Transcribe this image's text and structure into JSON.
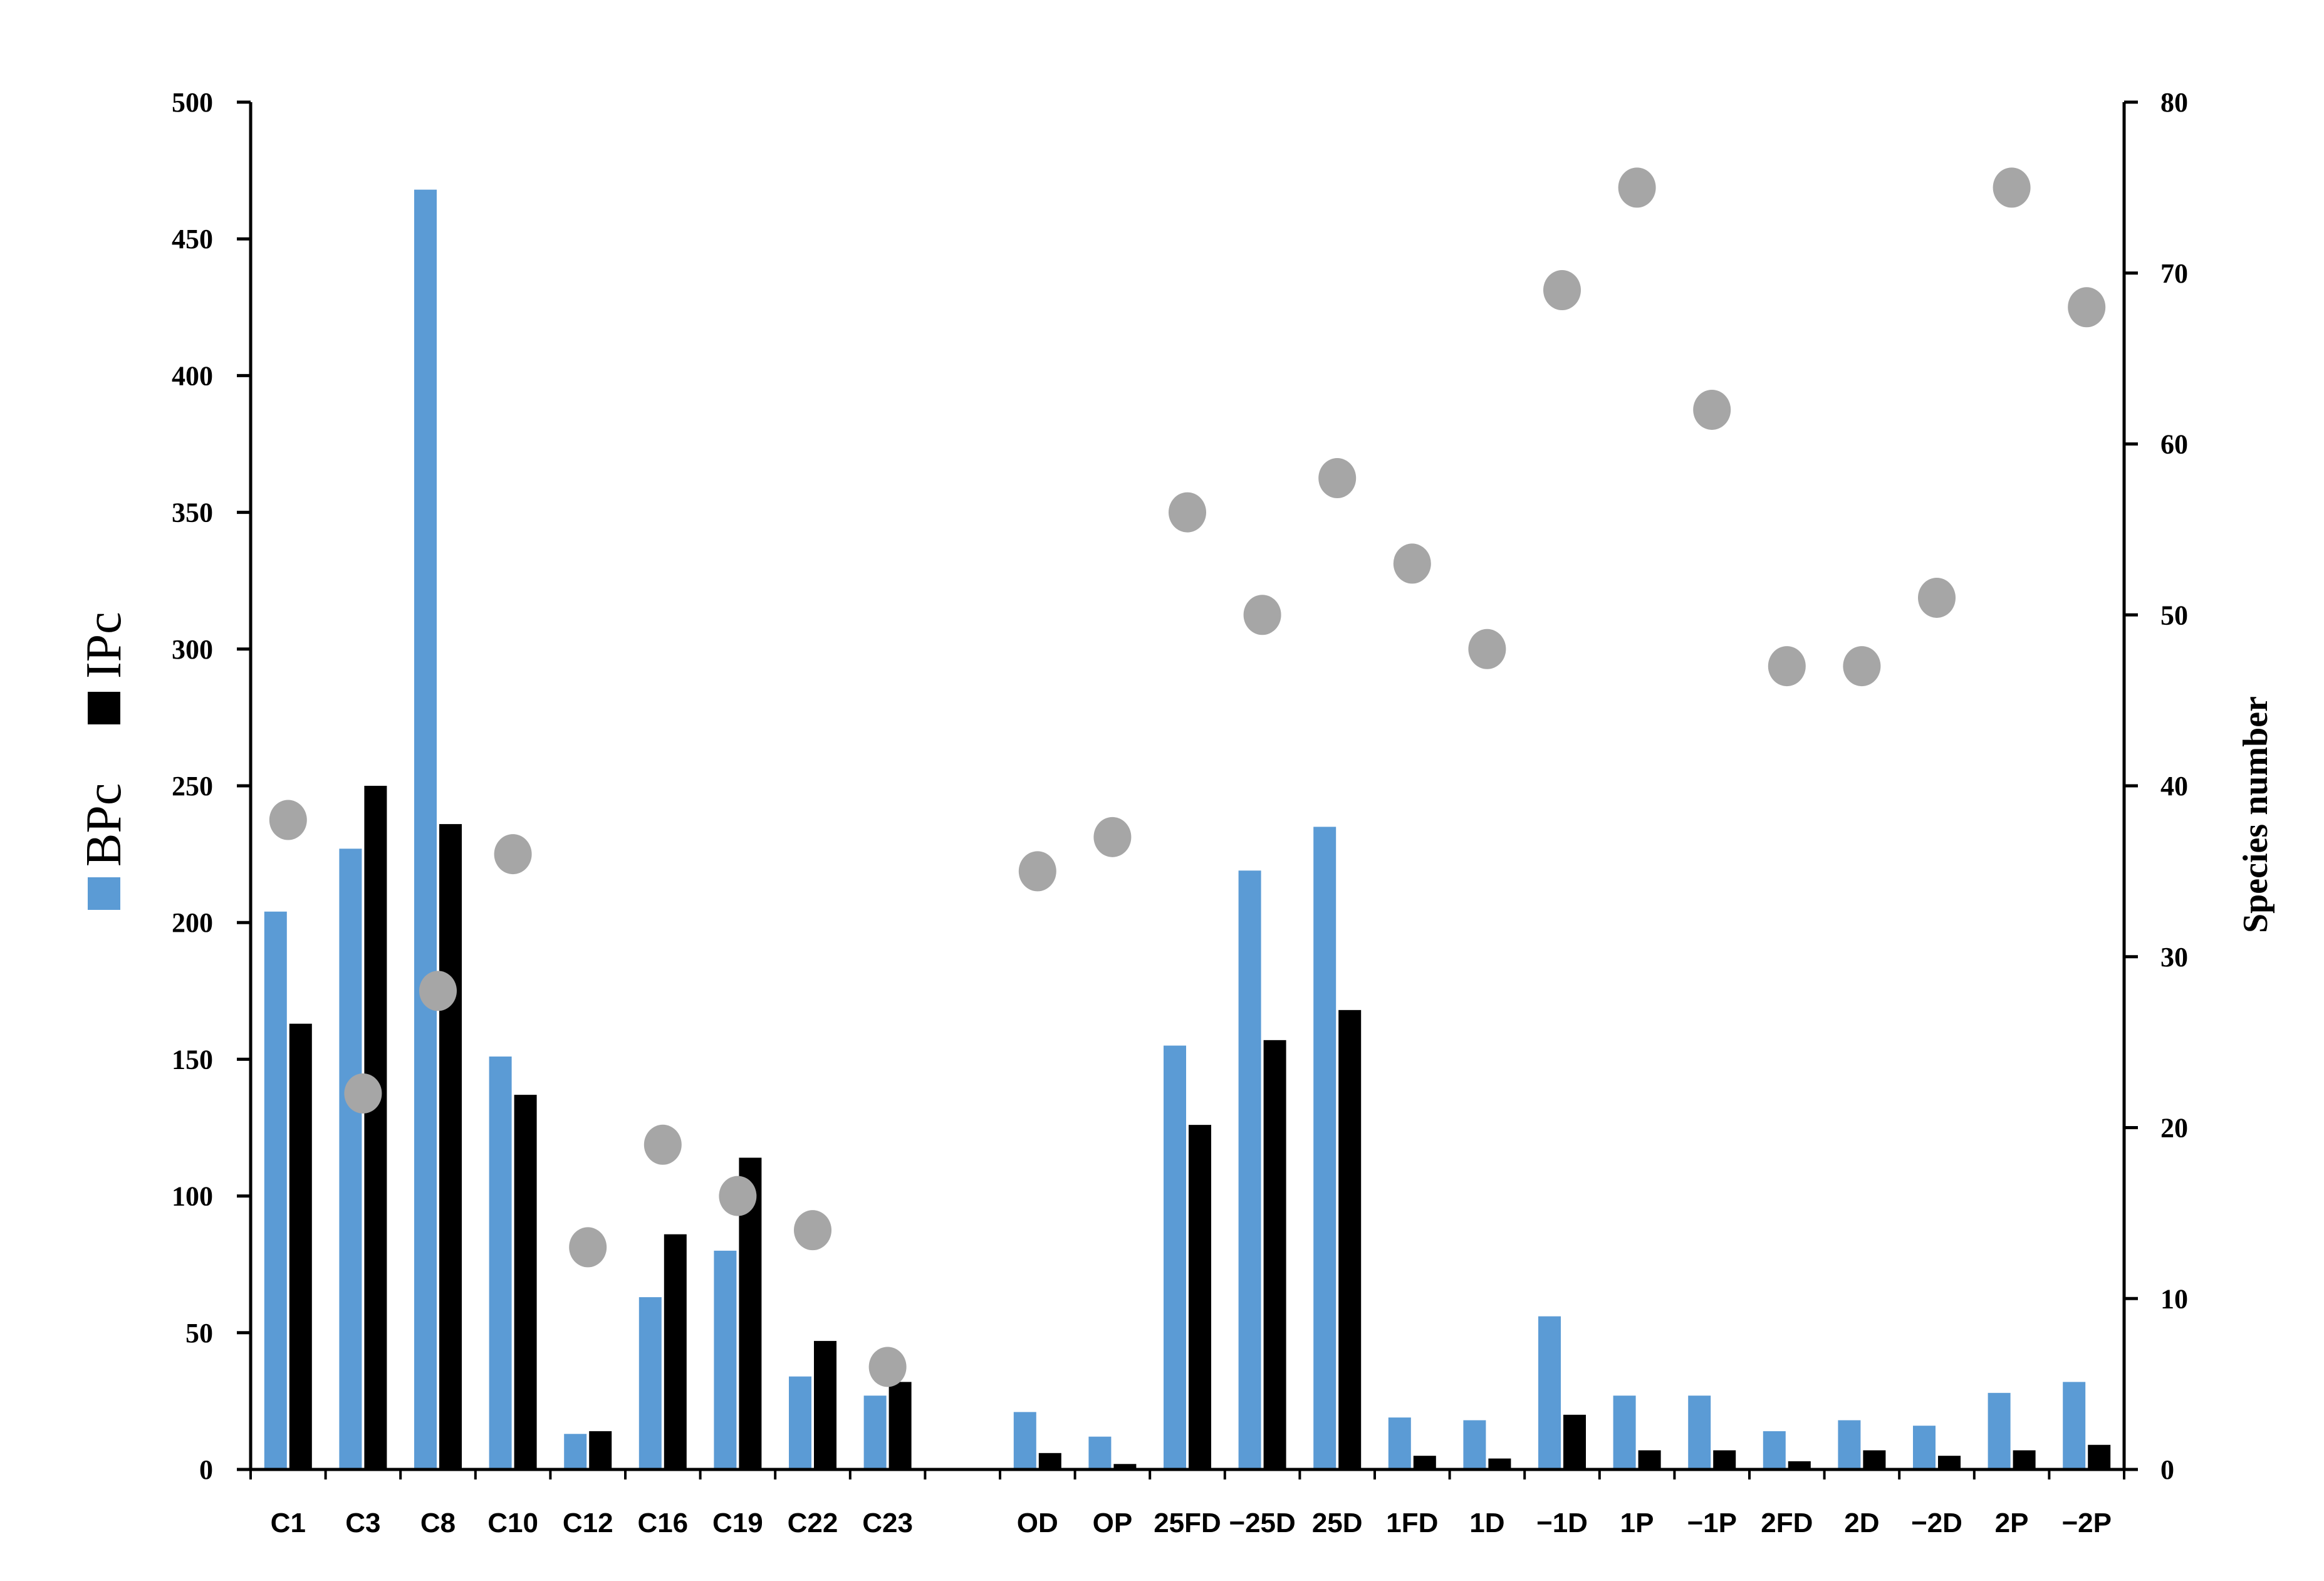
{
  "chart_data": {
    "type": "bar",
    "categories": [
      "C1",
      "C3",
      "C8",
      "C10",
      "C12",
      "C16",
      "C19",
      "C22",
      "C23",
      "",
      "OD",
      "OP",
      "25FD",
      "−25D",
      "25D",
      "1FD",
      "1D",
      "−1D",
      "1P",
      "−1P",
      "2FD",
      "2D",
      "−2D",
      "2P",
      "−2P"
    ],
    "series": [
      {
        "name": "BPc",
        "axis": "left",
        "color": "#5b9bd5",
        "values": [
          204,
          227,
          468,
          151,
          13,
          63,
          80,
          34,
          27,
          null,
          21,
          12,
          155,
          219,
          235,
          19,
          18,
          56,
          27,
          27,
          14,
          18,
          16,
          28,
          32
        ]
      },
      {
        "name": "IPc",
        "axis": "left",
        "color": "#000000",
        "values": [
          163,
          250,
          236,
          137,
          14,
          86,
          114,
          47,
          32,
          null,
          6,
          2,
          126,
          157,
          168,
          5,
          4,
          20,
          7,
          7,
          3,
          7,
          5,
          7,
          9
        ]
      },
      {
        "name": "",
        "axis": "right",
        "type": "scatter",
        "color": "#a6a6a6",
        "values": [
          38,
          22,
          28,
          36,
          13,
          19,
          16,
          14,
          6,
          null,
          35,
          37,
          56,
          50,
          58,
          53,
          48,
          69,
          75,
          62,
          47,
          47,
          51,
          75,
          68
        ]
      }
    ],
    "y_left": {
      "label": "",
      "ylim": [
        0,
        500
      ],
      "ticks": [
        "0",
        "50",
        "100",
        "150",
        "200",
        "250",
        "300",
        "350",
        "400",
        "450",
        "500"
      ]
    },
    "y_right": {
      "label": "Species number",
      "ylim": [
        0,
        80
      ],
      "ticks": [
        "0",
        "10",
        "20",
        "30",
        "40",
        "50",
        "60",
        "70",
        "80"
      ]
    },
    "legend": {
      "position": "left-vertical",
      "entries": [
        {
          "label": "BPc",
          "color": "#5b9bd5"
        },
        {
          "label": "IPc",
          "color": "#000000"
        }
      ]
    },
    "grid": false
  }
}
